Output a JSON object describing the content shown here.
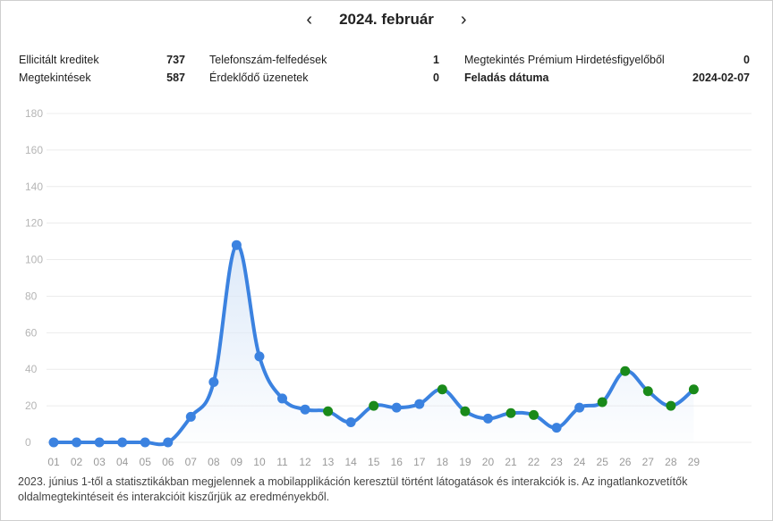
{
  "header": {
    "title": "2024. február",
    "prev_icon": "chevron-left-icon",
    "next_icon": "chevron-right-icon",
    "prev_glyph": "‹",
    "next_glyph": "›"
  },
  "stats": {
    "elicited_credits": {
      "label": "Ellicitált kreditek",
      "value": "737"
    },
    "views": {
      "label": "Megtekintések",
      "value": "587"
    },
    "phone_reveals": {
      "label": "Telefonszám-felfedések",
      "value": "1"
    },
    "messages": {
      "label": "Érdeklődő üzenetek",
      "value": "0"
    },
    "premium_views": {
      "label": "Megtekintés Prémium Hirdetésfigyelőből",
      "value": "0"
    },
    "post_date": {
      "label": "Feladás dátuma",
      "value": "2024-02-07"
    }
  },
  "chart_data": {
    "type": "line",
    "categories": [
      "01",
      "02",
      "03",
      "04",
      "05",
      "06",
      "07",
      "08",
      "09",
      "10",
      "11",
      "12",
      "13",
      "14",
      "15",
      "16",
      "17",
      "18",
      "19",
      "20",
      "21",
      "22",
      "23",
      "24",
      "25",
      "26",
      "27",
      "28",
      "29"
    ],
    "values": [
      0,
      0,
      0,
      0,
      0,
      0,
      14,
      33,
      108,
      47,
      24,
      18,
      17,
      11,
      20,
      19,
      21,
      29,
      17,
      13,
      16,
      15,
      8,
      19,
      22,
      39,
      28,
      20,
      29
    ],
    "point_colors": [
      "#3b82e0",
      "#3b82e0",
      "#3b82e0",
      "#3b82e0",
      "#3b82e0",
      "#3b82e0",
      "#3b82e0",
      "#3b82e0",
      "#3b82e0",
      "#3b82e0",
      "#3b82e0",
      "#3b82e0",
      "#1a8a1a",
      "#3b82e0",
      "#1a8a1a",
      "#3b82e0",
      "#3b82e0",
      "#1a8a1a",
      "#1a8a1a",
      "#3b82e0",
      "#1a8a1a",
      "#1a8a1a",
      "#3b82e0",
      "#3b82e0",
      "#1a8a1a",
      "#1a8a1a",
      "#1a8a1a",
      "#1a8a1a",
      "#1a8a1a"
    ],
    "yticks": [
      0,
      20,
      40,
      60,
      80,
      100,
      120,
      140,
      160,
      180
    ],
    "ylim": [
      0,
      180
    ],
    "grid": true,
    "title": "",
    "xlabel": "",
    "ylabel": "",
    "line_color": "#3b82e0",
    "fill_color": "#dbe8f8"
  },
  "footnote": "2023. június 1-től a statisztikákban megjelennek a mobilapplikáción keresztül történt látogatások és interakciók is. Az ingatlankozvetítők oldalmegtekintéseit és interakcióit kiszűrjük az eredményekből."
}
